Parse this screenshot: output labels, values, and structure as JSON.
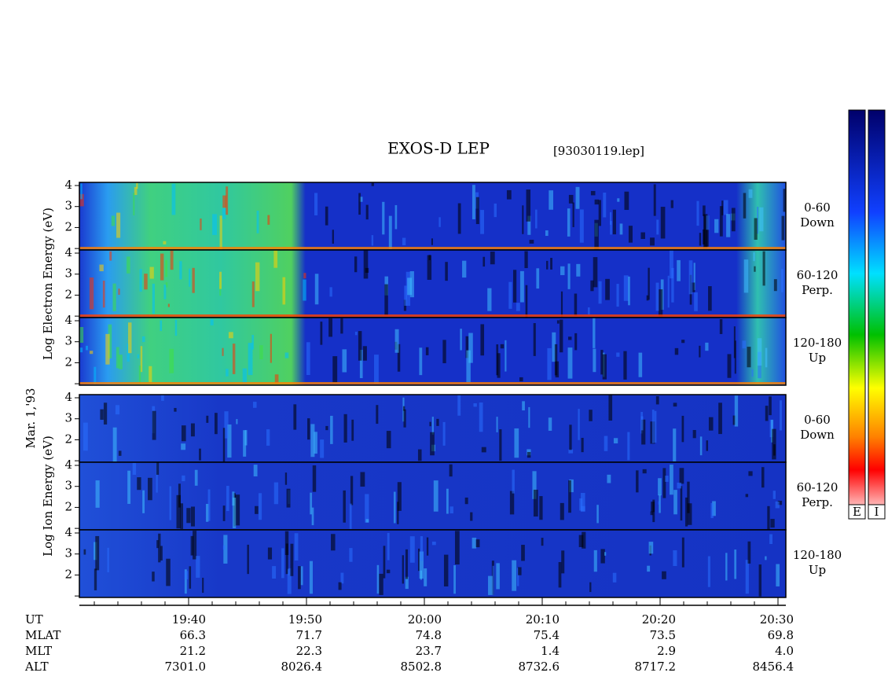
{
  "header": {
    "title": "EXOS-D LEP",
    "file": "[93030119.lep]"
  },
  "date": "Mar. 1,'93",
  "groups": [
    {
      "ylabel": "Log  Electron  Energy (eV)",
      "panels": [
        {
          "range": "0-60",
          "dir": "Down"
        },
        {
          "range": "60-120",
          "dir": "Perp."
        },
        {
          "range": "120-180",
          "dir": "Up"
        }
      ]
    },
    {
      "ylabel": "Log  Ion  Energy (eV)",
      "panels": [
        {
          "range": "0-60",
          "dir": "Down"
        },
        {
          "range": "60-120",
          "dir": "Perp."
        },
        {
          "range": "120-180",
          "dir": "Up"
        }
      ]
    }
  ],
  "ylim": [
    0.93,
    4.15
  ],
  "yticks": [
    2,
    3,
    4
  ],
  "colorbars": [
    "E",
    "I"
  ],
  "orbit": [
    {
      "label": "UT",
      "values": [
        "19:40",
        "19:50",
        "20:00",
        "20:10",
        "20:20",
        "20:30"
      ]
    },
    {
      "label": "MLAT",
      "values": [
        "66.3",
        "71.7",
        "74.8",
        "75.4",
        "73.5",
        "69.8"
      ]
    },
    {
      "label": "MLT",
      "values": [
        "21.2",
        "22.3",
        "23.7",
        "1.4",
        "2.9",
        "4.0"
      ]
    },
    {
      "label": "ALT",
      "values": [
        "7301.0",
        "8026.4",
        "8502.8",
        "8732.6",
        "8717.2",
        "8456.4"
      ]
    }
  ]
}
